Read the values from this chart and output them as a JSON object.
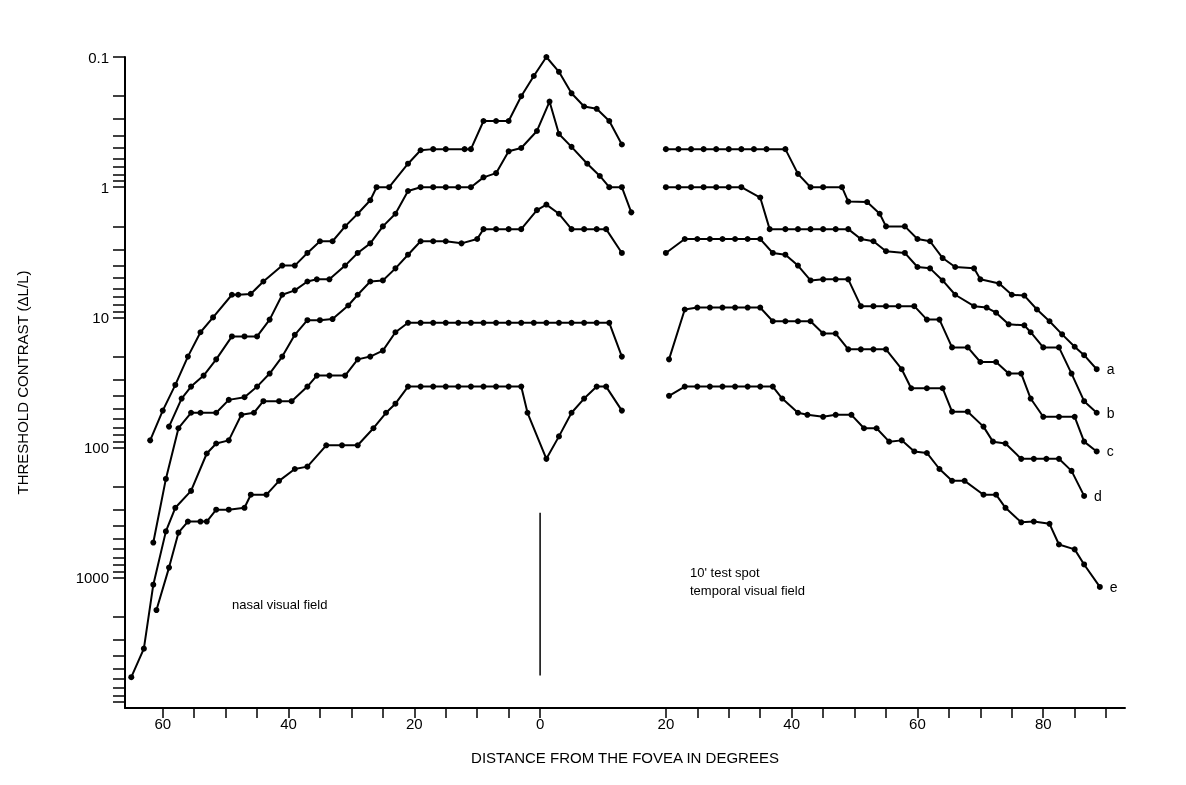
{
  "chart_data": {
    "type": "line",
    "xlabel": "DISTANCE FROM THE FOVEA IN DEGREES",
    "ylabel": "THRESHOLD CONTRAST (ΔL/L)",
    "log": "y",
    "marker": "circle",
    "line_style": "solid",
    "legend": false,
    "xlim": [
      -66,
      93
    ],
    "xticks": [
      {
        "value": -60,
        "label": "60"
      },
      {
        "value": -55,
        "label": null
      },
      {
        "value": -50,
        "label": null
      },
      {
        "value": -45,
        "label": null
      },
      {
        "value": -40,
        "label": "40"
      },
      {
        "value": -35,
        "label": null
      },
      {
        "value": -30,
        "label": null
      },
      {
        "value": -25,
        "label": null
      },
      {
        "value": -20,
        "label": "20"
      },
      {
        "value": -15,
        "label": null
      },
      {
        "value": -10,
        "label": null
      },
      {
        "value": -5,
        "label": null
      },
      0,
      20,
      {
        "value": 25,
        "label": null
      },
      {
        "value": 30,
        "label": null
      },
      {
        "value": 35,
        "label": null
      },
      40,
      {
        "value": 45,
        "label": null
      },
      {
        "value": 50,
        "label": null
      },
      {
        "value": 55,
        "label": null
      },
      60,
      {
        "value": 65,
        "label": null
      },
      {
        "value": 70,
        "label": null
      },
      {
        "value": 75,
        "label": null
      },
      80,
      {
        "value": 85,
        "label": null
      },
      {
        "value": 90,
        "label": null
      }
    ],
    "ylim": [
      10000,
      0.1
    ],
    "yticks": [
      0.1,
      {
        "value": 0.2,
        "label": null
      },
      {
        "value": 0.3,
        "label": null
      },
      {
        "value": 0.4,
        "label": null
      },
      {
        "value": 0.5,
        "label": null
      },
      {
        "value": 0.6,
        "label": null
      },
      {
        "value": 0.7,
        "label": null
      },
      {
        "value": 0.8,
        "label": null
      },
      {
        "value": 0.9,
        "label": null
      },
      1,
      {
        "value": 2,
        "label": null
      },
      {
        "value": 3,
        "label": null
      },
      {
        "value": 4,
        "label": null
      },
      {
        "value": 5,
        "label": null
      },
      {
        "value": 6,
        "label": null
      },
      {
        "value": 7,
        "label": null
      },
      {
        "value": 8,
        "label": null
      },
      {
        "value": 9,
        "label": null
      },
      10,
      {
        "value": 20,
        "label": null
      },
      {
        "value": 30,
        "label": null
      },
      {
        "value": 40,
        "label": null
      },
      {
        "value": 50,
        "label": null
      },
      {
        "value": 60,
        "label": null
      },
      {
        "value": 70,
        "label": null
      },
      {
        "value": 80,
        "label": null
      },
      {
        "value": 90,
        "label": null
      },
      100,
      {
        "value": 200,
        "label": null
      },
      {
        "value": 300,
        "label": null
      },
      {
        "value": 400,
        "label": null
      },
      {
        "value": 500,
        "label": null
      },
      {
        "value": 600,
        "label": null
      },
      {
        "value": 700,
        "label": null
      },
      {
        "value": 800,
        "label": null
      },
      {
        "value": 900,
        "label": null
      },
      1000,
      {
        "value": 2000,
        "label": null
      },
      {
        "value": 3000,
        "label": null
      },
      {
        "value": 4000,
        "label": null
      },
      {
        "value": 5000,
        "label": null
      },
      {
        "value": 6000,
        "label": null
      },
      {
        "value": 7000,
        "label": null
      },
      {
        "value": 8000,
        "label": null
      },
      {
        "value": 9000,
        "label": null
      }
    ],
    "ref_lines": [
      {
        "axis": "x",
        "value": 0,
        "label": null,
        "color": "#000000",
        "line_style": "solid"
      }
    ],
    "annotations": [
      "nasal visual field",
      "10' test spot",
      "temporal visual field"
    ],
    "series": [
      {
        "name": "a",
        "color": "#000000",
        "x": [
          -62,
          -60,
          -58,
          -56,
          -54,
          -52,
          -49,
          -48,
          -46,
          -44,
          -41,
          -39,
          -37,
          -35,
          -33,
          -31,
          -29,
          -27,
          -26,
          -24,
          -21,
          -19,
          -17,
          -15,
          -12,
          -11,
          -9,
          -7,
          -5,
          -3,
          -1,
          1,
          3,
          5,
          7,
          9,
          11,
          13,
          16,
          20,
          22,
          24,
          26,
          28,
          30,
          32,
          34,
          36,
          39,
          41,
          43,
          45,
          48,
          49,
          52,
          54,
          55,
          58,
          60,
          62,
          64,
          66,
          69,
          70,
          73,
          75,
          77,
          79,
          81,
          83,
          85,
          86.5,
          88.5
        ],
        "values": [
          88,
          52,
          33,
          20,
          13,
          10,
          6.7,
          6.7,
          6.6,
          5.3,
          4.0,
          4.0,
          3.2,
          2.6,
          2.6,
          2.0,
          1.6,
          1.26,
          1.0,
          1.0,
          0.66,
          0.52,
          0.51,
          0.51,
          0.51,
          0.51,
          0.31,
          0.31,
          0.31,
          0.2,
          0.14,
          0.1,
          0.13,
          0.19,
          0.24,
          0.25,
          0.31,
          0.47,
          null,
          0.51,
          0.51,
          0.51,
          0.51,
          0.51,
          0.51,
          0.51,
          0.51,
          0.51,
          0.51,
          0.79,
          1.0,
          1.0,
          1.0,
          1.29,
          1.3,
          1.6,
          2.0,
          2.0,
          2.5,
          2.6,
          3.5,
          4.1,
          4.2,
          5.1,
          5.5,
          6.7,
          6.8,
          8.7,
          10.7,
          13.5,
          16.8,
          19.5,
          25
        ]
      },
      {
        "name": "b",
        "color": "#000000",
        "x": [
          -59,
          -57,
          -55.5,
          -53.5,
          -51.5,
          -49,
          -47,
          -45,
          -43,
          -41,
          -39,
          -37,
          -35.5,
          -33.5,
          -31,
          -29,
          -27,
          -25,
          -23,
          -21,
          -19,
          -17,
          -15,
          -13,
          -11,
          -9,
          -7,
          -5,
          -3,
          -0.5,
          1.5,
          3,
          5,
          7.5,
          9.5,
          11,
          13,
          14.5,
          17,
          20,
          22,
          24,
          26,
          28,
          30,
          32,
          35,
          36.5,
          39,
          41,
          43,
          45,
          47,
          49,
          51,
          53,
          55,
          58,
          60,
          62,
          64,
          66,
          69,
          71,
          72.5,
          74.5,
          77,
          78,
          80,
          82.5,
          84.5,
          86.5,
          88.5
        ],
        "values": [
          69,
          42,
          34,
          28,
          21,
          14,
          14,
          14,
          10.4,
          6.7,
          6.2,
          5.3,
          5.1,
          5.1,
          4.0,
          3.2,
          2.7,
          2.0,
          1.6,
          1.07,
          1.0,
          1.0,
          1.0,
          1.0,
          1.0,
          0.84,
          0.78,
          0.53,
          0.5,
          0.37,
          0.22,
          0.39,
          0.49,
          0.66,
          0.82,
          1.0,
          1.0,
          1.56,
          null,
          1.0,
          1.0,
          1.0,
          1.0,
          1.0,
          1.0,
          1.0,
          1.2,
          2.1,
          2.1,
          2.1,
          2.1,
          2.1,
          2.1,
          2.1,
          2.5,
          2.6,
          3.1,
          3.2,
          4.1,
          4.2,
          5.2,
          6.7,
          8.2,
          8.4,
          9.2,
          11.3,
          11.5,
          13,
          17,
          17,
          27,
          44,
          54
        ]
      },
      {
        "name": "c",
        "color": "#000000",
        "x": [
          -61.5,
          -59.5,
          -57.5,
          -55.5,
          -54,
          -51.5,
          -49.5,
          -47,
          -45,
          -43,
          -41,
          -39,
          -37,
          -35,
          -33,
          -30.5,
          -29,
          -27,
          -25,
          -23,
          -21,
          -19,
          -17,
          -15,
          -12.5,
          -10,
          -9,
          -7,
          -5,
          -3,
          -0.5,
          1,
          3,
          5,
          7,
          9,
          10.5,
          13,
          16,
          20,
          23,
          25,
          27,
          29,
          31,
          33,
          35,
          37,
          39,
          41,
          43,
          45,
          47,
          49,
          51,
          53,
          55,
          57,
          59.5,
          61.5,
          63.5,
          65.5,
          68,
          70,
          72.5,
          74.5,
          76.5,
          78,
          80,
          82.5,
          85,
          86.5,
          88.5
        ],
        "values": [
          536,
          174,
          71,
          54,
          54,
          54,
          43,
          41,
          34,
          27,
          20,
          13.6,
          10.5,
          10.5,
          10.3,
          8.1,
          6.7,
          5.3,
          5.2,
          4.2,
          3.3,
          2.6,
          2.6,
          2.6,
          2.7,
          2.5,
          2.1,
          2.1,
          2.1,
          2.1,
          1.5,
          1.36,
          1.6,
          2.1,
          2.1,
          2.1,
          2.1,
          3.2,
          null,
          3.2,
          2.5,
          2.5,
          2.5,
          2.5,
          2.5,
          2.5,
          2.5,
          3.2,
          3.3,
          4.0,
          5.2,
          5.1,
          5.1,
          5.1,
          8.2,
          8.2,
          8.2,
          8.2,
          8.2,
          10.4,
          10.4,
          17,
          17,
          22,
          22,
          27,
          27,
          42,
          58,
          58,
          58,
          90,
          107
        ]
      },
      {
        "name": "d",
        "color": "#000000",
        "x": [
          -65,
          -63,
          -61.5,
          -59.5,
          -58,
          -55.5,
          -53,
          -51.5,
          -49.5,
          -47.5,
          -45.5,
          -44,
          -41.5,
          -39.5,
          -37,
          -35.5,
          -33.5,
          -31,
          -29,
          -27,
          -25,
          -23,
          -21,
          -19,
          -17,
          -15,
          -13,
          -11,
          -9,
          -7,
          -5,
          -3,
          -1,
          1,
          3,
          5,
          7,
          9,
          11,
          13,
          16,
          20.5,
          23,
          25,
          27,
          29,
          31,
          33,
          35,
          37,
          39,
          41,
          43,
          45,
          47,
          49,
          51,
          53,
          55,
          57.5,
          59,
          61.5,
          64,
          65.5,
          68,
          70.5,
          72,
          74,
          76.5,
          78.5,
          80.5,
          82.5,
          84.5,
          86.5
        ],
        "values": [
          5800,
          3500,
          1130,
          440,
          290,
          215,
          111,
          93,
          88,
          56,
          54,
          44,
          44,
          44,
          34,
          28,
          28,
          28,
          21,
          20,
          18,
          13,
          11,
          11,
          11,
          11,
          11,
          11,
          11,
          11,
          11,
          11,
          11,
          11,
          11,
          11,
          11,
          11,
          11,
          20,
          null,
          21,
          8.7,
          8.4,
          8.4,
          8.4,
          8.4,
          8.4,
          8.4,
          10.7,
          10.7,
          10.7,
          10.7,
          13.3,
          13.3,
          17.6,
          17.6,
          17.6,
          17.6,
          25,
          35,
          35,
          35,
          53,
          53,
          69,
          90,
          93,
          122,
          122,
          122,
          122,
          151,
          235
        ]
      },
      {
        "name": "e",
        "color": "#000000",
        "x": [
          -61,
          -59,
          -57.5,
          -56,
          -54,
          -53,
          -51.5,
          -49.5,
          -47,
          -46,
          -43.5,
          -41.5,
          -39,
          -37,
          -34,
          -31.5,
          -29,
          -26.5,
          -24.5,
          -23,
          -21,
          -19,
          -17,
          -15,
          -13,
          -11,
          -9,
          -7,
          -5,
          -3,
          -2,
          1,
          3,
          5,
          7,
          9,
          10.5,
          13,
          16,
          20.5,
          23,
          25,
          27,
          29,
          31,
          33,
          35,
          37,
          38.5,
          41,
          42.5,
          45,
          47,
          49.5,
          51.5,
          53.5,
          55.5,
          57.5,
          59.5,
          61.5,
          63.5,
          65.5,
          67.5,
          70.5,
          72.5,
          74,
          76.5,
          78.5,
          81,
          82.5,
          85,
          86.5,
          89
        ],
        "values": [
          1770,
          835,
          450,
          370,
          370,
          370,
          300,
          300,
          290,
          230,
          230,
          180,
          146,
          140,
          96,
          96,
          96,
          71,
          54,
          46,
          34,
          34,
          34,
          34,
          34,
          34,
          34,
          34,
          34,
          34,
          54,
          122,
          82,
          54,
          42,
          34,
          34,
          52,
          null,
          40,
          34,
          34,
          34,
          34,
          34,
          34,
          34,
          34,
          42,
          54,
          56,
          58,
          56,
          56,
          71,
          71,
          90,
          88,
          107,
          110,
          146,
          180,
          180,
          230,
          230,
          290,
          375,
          370,
          385,
          555,
          605,
          790,
          1175
        ]
      }
    ]
  }
}
